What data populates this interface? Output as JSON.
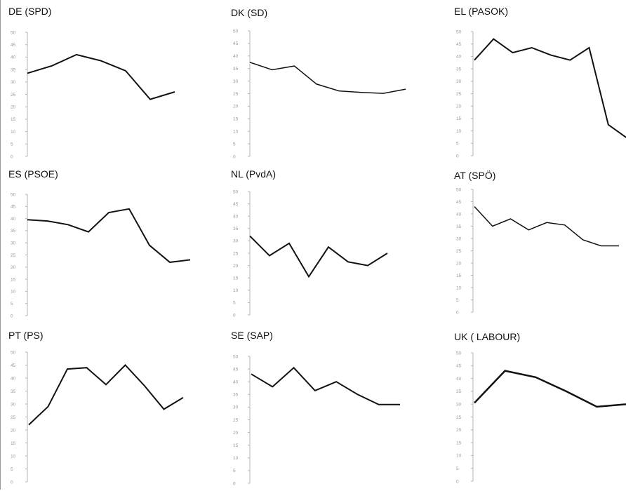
{
  "chart_data": [
    {
      "type": "line",
      "title": "DE (SPD)",
      "ylim": [
        0,
        50
      ],
      "yticks": [
        0,
        5,
        10,
        15,
        20,
        25,
        30,
        35,
        40,
        45,
        50
      ],
      "grid": false,
      "series": [
        {
          "x": [
            0,
            1,
            2,
            3,
            4,
            5,
            6
          ],
          "values": [
            33.5,
            36.5,
            41,
            38.5,
            34.5,
            23,
            26
          ]
        }
      ]
    },
    {
      "type": "line",
      "title": "DK (SD)",
      "ylim": [
        0,
        50
      ],
      "yticks": [
        0,
        5,
        10,
        15,
        20,
        25,
        30,
        35,
        40,
        45,
        50
      ],
      "grid": false,
      "series": [
        {
          "x": [
            0,
            1,
            2,
            3,
            4,
            5,
            6,
            7
          ],
          "values": [
            37.5,
            34.5,
            36,
            28.8,
            26.1,
            25.5,
            25.1,
            26.8
          ]
        }
      ]
    },
    {
      "type": "line",
      "title": "EL (PASOK)",
      "ylim": [
        0,
        50
      ],
      "yticks": [
        0,
        5,
        10,
        15,
        20,
        25,
        30,
        35,
        40,
        45,
        50
      ],
      "grid": false,
      "series": [
        {
          "x": [
            0,
            1,
            2,
            3,
            4,
            5,
            6,
            7,
            8
          ],
          "values": [
            38.5,
            47,
            41.5,
            43.5,
            40.5,
            38.5,
            43.5,
            12.5,
            7
          ]
        }
      ]
    },
    {
      "type": "line",
      "title": "ES (PSOE)",
      "ylim": [
        0,
        50
      ],
      "yticks": [
        0,
        5,
        10,
        15,
        20,
        25,
        30,
        35,
        40,
        45,
        50
      ],
      "grid": false,
      "series": [
        {
          "x": [
            0,
            1,
            2,
            3,
            4,
            5,
            6,
            7,
            8
          ],
          "values": [
            39.5,
            39,
            37.5,
            34.5,
            42.5,
            44,
            29,
            22,
            23
          ]
        }
      ]
    },
    {
      "type": "line",
      "title": "NL (PvdA)",
      "ylim": [
        0,
        50
      ],
      "yticks": [
        0,
        5,
        10,
        15,
        20,
        25,
        30,
        35,
        40,
        45,
        50
      ],
      "grid": false,
      "series": [
        {
          "x": [
            0,
            1,
            2,
            3,
            4,
            5,
            6,
            7
          ],
          "values": [
            32,
            24,
            29,
            15.5,
            27.5,
            21.5,
            20,
            25
          ]
        }
      ]
    },
    {
      "type": "line",
      "title": "AT (SPÖ)",
      "ylim": [
        0,
        50
      ],
      "yticks": [
        0,
        5,
        10,
        15,
        20,
        25,
        30,
        35,
        40,
        45,
        50
      ],
      "grid": false,
      "series": [
        {
          "x": [
            0,
            1,
            2,
            3,
            4,
            5,
            6,
            7,
            8
          ],
          "values": [
            43,
            35,
            38,
            33.5,
            36.5,
            35.5,
            29.5,
            27,
            27
          ]
        }
      ]
    },
    {
      "type": "line",
      "title": "PT (PS)",
      "ylim": [
        0,
        50
      ],
      "yticks": [
        0,
        5,
        10,
        15,
        20,
        25,
        30,
        35,
        40,
        45,
        50
      ],
      "grid": false,
      "series": [
        {
          "x": [
            0,
            1,
            2,
            3,
            4,
            5,
            6,
            7,
            8
          ],
          "values": [
            22,
            29,
            43.5,
            44,
            37.5,
            45,
            37,
            28,
            32.5
          ]
        }
      ]
    },
    {
      "type": "line",
      "title": "SE (SAP)",
      "ylim": [
        0,
        50
      ],
      "yticks": [
        0,
        5,
        10,
        15,
        20,
        25,
        30,
        35,
        40,
        45,
        50
      ],
      "grid": false,
      "series": [
        {
          "x": [
            0,
            1,
            2,
            3,
            4,
            5,
            6,
            7
          ],
          "values": [
            43,
            38,
            45.5,
            36.5,
            40,
            35,
            31,
            31
          ]
        }
      ]
    },
    {
      "type": "line",
      "title": "UK ( LABOUR)",
      "ylim": [
        0,
        50
      ],
      "yticks": [
        0,
        5,
        10,
        15,
        20,
        25,
        30,
        35,
        40,
        45,
        50
      ],
      "grid": false,
      "series": [
        {
          "x": [
            0,
            1,
            2,
            3,
            4,
            5
          ],
          "values": [
            30.5,
            43,
            40.5,
            35,
            29,
            30
          ]
        }
      ]
    }
  ]
}
